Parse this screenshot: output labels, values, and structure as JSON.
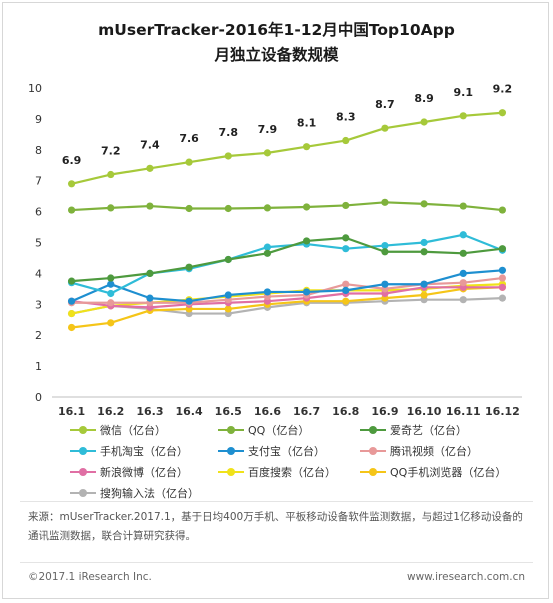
{
  "title_line1": "mUserTracker-2016年1-12月中国Top10App",
  "title_line2": "月独立设备数规模",
  "chart_data": {
    "type": "line",
    "categories": [
      "16.1",
      "16.2",
      "16.3",
      "16.4",
      "16.5",
      "16.6",
      "16.7",
      "16.8",
      "16.9",
      "16.10",
      "16.11",
      "16.12"
    ],
    "ylim": [
      0,
      10
    ],
    "yticks": [
      0,
      1,
      2,
      3,
      4,
      5,
      6,
      7,
      8,
      9,
      10
    ],
    "grid": false,
    "legend_position": "bottom",
    "series": [
      {
        "name": "微信（亿台）",
        "color": "#a6c93a",
        "values": [
          6.9,
          7.2,
          7.4,
          7.6,
          7.8,
          7.9,
          8.1,
          8.3,
          8.7,
          8.9,
          9.1,
          9.2
        ],
        "labels": [
          "6.9",
          "7.2",
          "7.4",
          "7.6",
          "7.8",
          "7.9",
          "8.1",
          "8.3",
          "8.7",
          "8.9",
          "9.1",
          "9.2"
        ]
      },
      {
        "name": "QQ（亿台）",
        "color": "#7fb23c",
        "values": [
          6.05,
          6.12,
          6.18,
          6.1,
          6.1,
          6.12,
          6.15,
          6.2,
          6.3,
          6.25,
          6.18,
          6.05
        ]
      },
      {
        "name": "爱奇艺（亿台）",
        "color": "#4e9a3e",
        "values": [
          3.75,
          3.85,
          4.0,
          4.2,
          4.45,
          4.65,
          5.05,
          5.15,
          4.7,
          4.7,
          4.65,
          4.8
        ]
      },
      {
        "name": "手机淘宝（亿台）",
        "color": "#2fbcd8",
        "values": [
          3.7,
          3.35,
          4.0,
          4.15,
          4.45,
          4.85,
          4.95,
          4.8,
          4.9,
          5.0,
          5.25,
          4.75
        ]
      },
      {
        "name": "支付宝（亿台）",
        "color": "#1e8fd0",
        "values": [
          3.1,
          3.65,
          3.2,
          3.1,
          3.3,
          3.4,
          3.4,
          3.45,
          3.65,
          3.65,
          4.0,
          4.1
        ]
      },
      {
        "name": "腾讯视频（亿台）",
        "color": "#e89999",
        "values": [
          3.05,
          3.05,
          3.05,
          3.05,
          3.15,
          3.25,
          3.3,
          3.65,
          3.5,
          3.65,
          3.7,
          3.85
        ]
      },
      {
        "name": "新浪微博（亿台）",
        "color": "#e06fa4",
        "values": [
          3.1,
          2.95,
          2.9,
          3.0,
          3.05,
          3.1,
          3.2,
          3.35,
          3.35,
          3.55,
          3.55,
          3.55
        ]
      },
      {
        "name": "百度搜索（亿台）",
        "color": "#f0e21a",
        "values": [
          2.7,
          2.95,
          3.05,
          3.15,
          3.25,
          3.35,
          3.45,
          3.45,
          3.45,
          3.5,
          3.6,
          3.65
        ]
      },
      {
        "name": "QQ手机浏览器（亿台）",
        "color": "#f5c518",
        "values": [
          2.25,
          2.4,
          2.8,
          2.85,
          2.85,
          3.0,
          3.1,
          3.1,
          3.2,
          3.3,
          3.5,
          3.55
        ]
      },
      {
        "name": "搜狗输入法（亿台）",
        "color": "#b3b3b3",
        "values": [
          2.7,
          2.95,
          2.85,
          2.7,
          2.7,
          2.9,
          3.05,
          3.05,
          3.1,
          3.15,
          3.15,
          3.2
        ]
      }
    ]
  },
  "source_text": "来源：mUserTracker.2017.1，基于日均400万手机、平板移动设备软件监测数据，与超过1亿移动设备的通讯监测数据，联合计算研究获得。",
  "footer_left": "©2017.1 iResearch Inc.",
  "footer_right": "www.iresearch.com.cn"
}
